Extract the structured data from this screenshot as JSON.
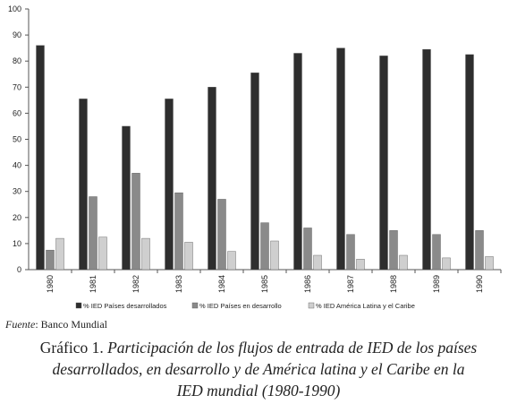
{
  "chart_data": {
    "type": "bar",
    "categories": [
      "1980",
      "1981",
      "1982",
      "1983",
      "1984",
      "1985",
      "1986",
      "1987",
      "1988",
      "1989",
      "1990"
    ],
    "series": [
      {
        "name": "% IED Países desarrollados",
        "color": "#2e2e2e",
        "values": [
          86,
          65.5,
          55,
          65.5,
          70,
          75.5,
          83,
          85,
          82,
          84.5,
          82.5
        ]
      },
      {
        "name": "% IED Países en desarrollo",
        "color": "#8a8a8a",
        "values": [
          7.5,
          28,
          37,
          29.5,
          27,
          18,
          16,
          13.5,
          15,
          13.5,
          15
        ]
      },
      {
        "name": "% IED América Latina y el Caribe",
        "color": "#cfcfcf",
        "values": [
          12,
          12.5,
          12,
          10.5,
          7,
          11,
          5.5,
          4,
          5.5,
          4.5,
          5
        ]
      }
    ],
    "ylim": [
      0,
      100
    ],
    "yticks": [
      0,
      10,
      20,
      30,
      40,
      50,
      60,
      70,
      80,
      90,
      100
    ],
    "grid": false,
    "legend": "bottom"
  },
  "source": {
    "label": "Fuente",
    "text": ": Banco Mundial"
  },
  "caption": {
    "label": "Gráfico 1.",
    "lines": [
      "Participación de los flujos de entrada de IED de los países",
      "desarrollados, en desarrollo y de América latina y el Caribe en la",
      "IED mundial (1980-1990)"
    ]
  }
}
